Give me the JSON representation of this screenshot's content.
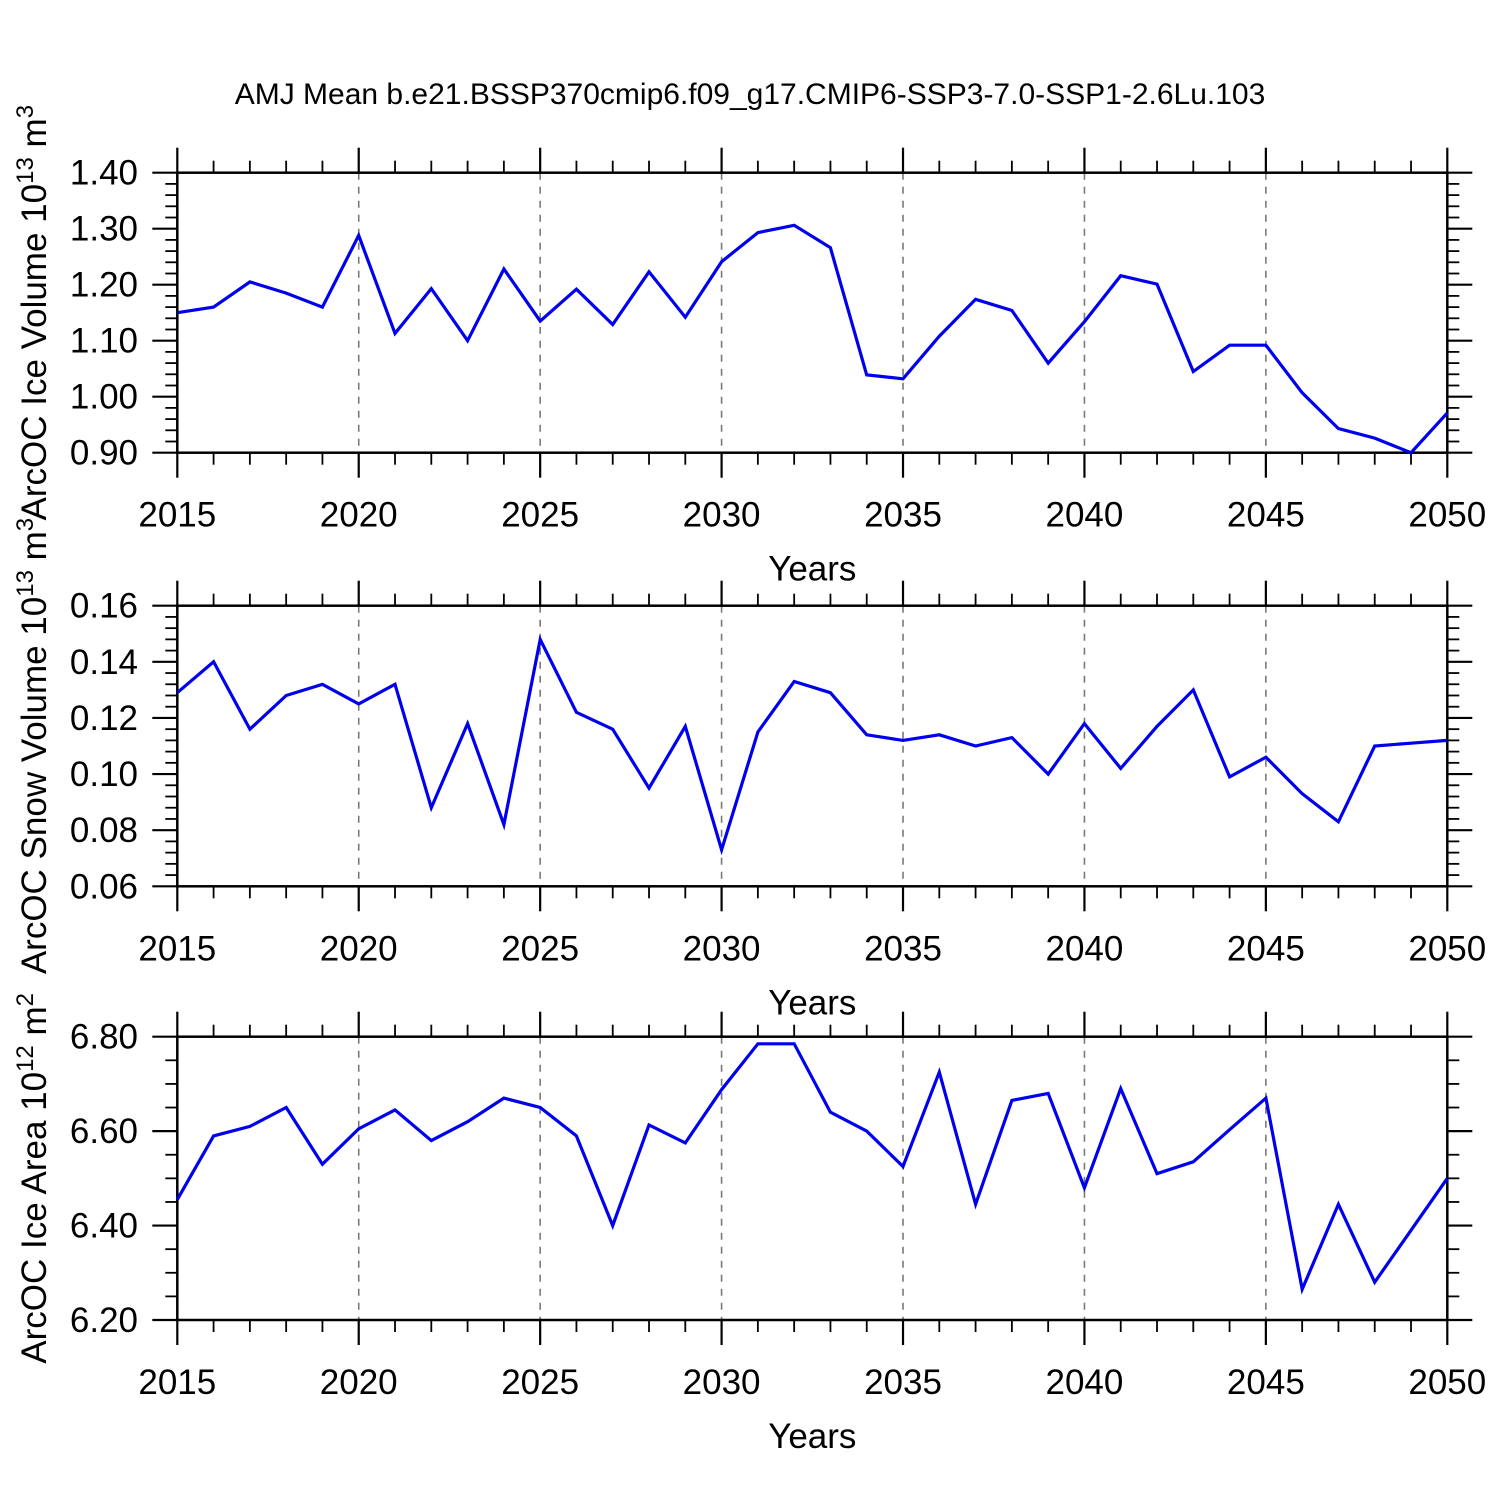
{
  "title": "AMJ Mean b.e21.BSSP370cmip6.f09_g17.CMIP6-SSP3-7.0-SSP1-2.6Lu.103",
  "style": {
    "line_color": "#0000ee",
    "grid_color": "#7a7a7a",
    "frame_color": "#000000",
    "background": "#ffffff"
  },
  "x_axis": {
    "label": "Years",
    "start": 2015,
    "end": 2050,
    "major_step": 5,
    "minor_step": 1,
    "tick_labels": [
      "2015",
      "2020",
      "2025",
      "2030",
      "2035",
      "2040",
      "2045",
      "2050"
    ],
    "years": [
      2015,
      2016,
      2017,
      2018,
      2019,
      2020,
      2021,
      2022,
      2023,
      2024,
      2025,
      2026,
      2027,
      2028,
      2029,
      2030,
      2031,
      2032,
      2033,
      2034,
      2035,
      2036,
      2037,
      2038,
      2039,
      2040,
      2041,
      2042,
      2043,
      2044,
      2045,
      2046,
      2047,
      2048,
      2049,
      2050
    ]
  },
  "chart_data": [
    {
      "type": "line",
      "name": "ice-volume",
      "ylabel": "ArcOC Ice Volume 10^13 m^3",
      "ylabel_parts": [
        {
          "t": "ArcOC Ice Volume 10"
        },
        {
          "t": "13",
          "sup": true
        },
        {
          "t": " m"
        },
        {
          "t": "3",
          "sup": true
        }
      ],
      "xlabel": "Years",
      "ylim": [
        0.9,
        1.4
      ],
      "ytick_major": 0.1,
      "ytick_minor": 0.02,
      "ytick_labels": [
        "0.90",
        "1.00",
        "1.10",
        "1.20",
        "1.30",
        "1.40"
      ],
      "grid": "vertical-dashed",
      "values": [
        1.15,
        1.16,
        1.205,
        1.185,
        1.16,
        1.288,
        1.113,
        1.193,
        1.1,
        1.228,
        1.135,
        1.192,
        1.129,
        1.223,
        1.142,
        1.241,
        1.293,
        1.306,
        1.266,
        1.039,
        1.032,
        1.108,
        1.174,
        1.154,
        1.06,
        1.134,
        1.216,
        1.201,
        1.045,
        1.092,
        1.092,
        1.007,
        0.943,
        0.926,
        0.9,
        0.971
      ]
    },
    {
      "type": "line",
      "name": "snow-volume",
      "ylabel": "ArcOC Snow Volume 10^13 m^3",
      "ylabel_parts": [
        {
          "t": "ArcOC Snow Volume 10"
        },
        {
          "t": "13",
          "sup": true
        },
        {
          "t": " m"
        },
        {
          "t": "3",
          "sup": true
        }
      ],
      "xlabel": "Years",
      "ylim": [
        0.06,
        0.16
      ],
      "ytick_major": 0.02,
      "ytick_minor": 0.004,
      "ytick_labels": [
        "0.06",
        "0.08",
        "0.10",
        "0.12",
        "0.14",
        "0.16"
      ],
      "grid": "vertical-dashed",
      "values": [
        0.129,
        0.14,
        0.116,
        0.128,
        0.132,
        0.125,
        0.132,
        0.088,
        0.118,
        0.082,
        0.148,
        0.122,
        0.116,
        0.095,
        0.117,
        0.073,
        0.115,
        0.133,
        0.129,
        0.114,
        0.112,
        0.114,
        0.11,
        0.113,
        0.1,
        0.118,
        0.102,
        0.117,
        0.13,
        0.099,
        0.106,
        0.093,
        0.083,
        0.11,
        0.111,
        0.112
      ]
    },
    {
      "type": "line",
      "name": "ice-area",
      "ylabel": "ArcOC Ice Area 10^12 m^2",
      "ylabel_parts": [
        {
          "t": "ArcOC Ice Area 10"
        },
        {
          "t": "12",
          "sup": true
        },
        {
          "t": " m"
        },
        {
          "t": "2",
          "sup": true
        }
      ],
      "xlabel": "Years",
      "ylim": [
        6.2,
        6.8
      ],
      "ytick_major": 0.2,
      "ytick_minor": 0.05,
      "ytick_labels": [
        "6.20",
        "6.40",
        "6.60",
        "6.80"
      ],
      "grid": "vertical-dashed",
      "values": [
        6.455,
        6.59,
        6.61,
        6.65,
        6.53,
        6.605,
        6.645,
        6.58,
        6.62,
        6.67,
        6.65,
        6.59,
        6.4,
        6.613,
        6.575,
        6.688,
        6.785,
        6.785,
        6.64,
        6.6,
        6.525,
        6.725,
        6.445,
        6.665,
        6.68,
        6.48,
        6.69,
        6.51,
        6.535,
        6.603,
        6.67,
        6.265,
        6.445,
        6.28,
        6.39,
        6.5
      ]
    }
  ]
}
